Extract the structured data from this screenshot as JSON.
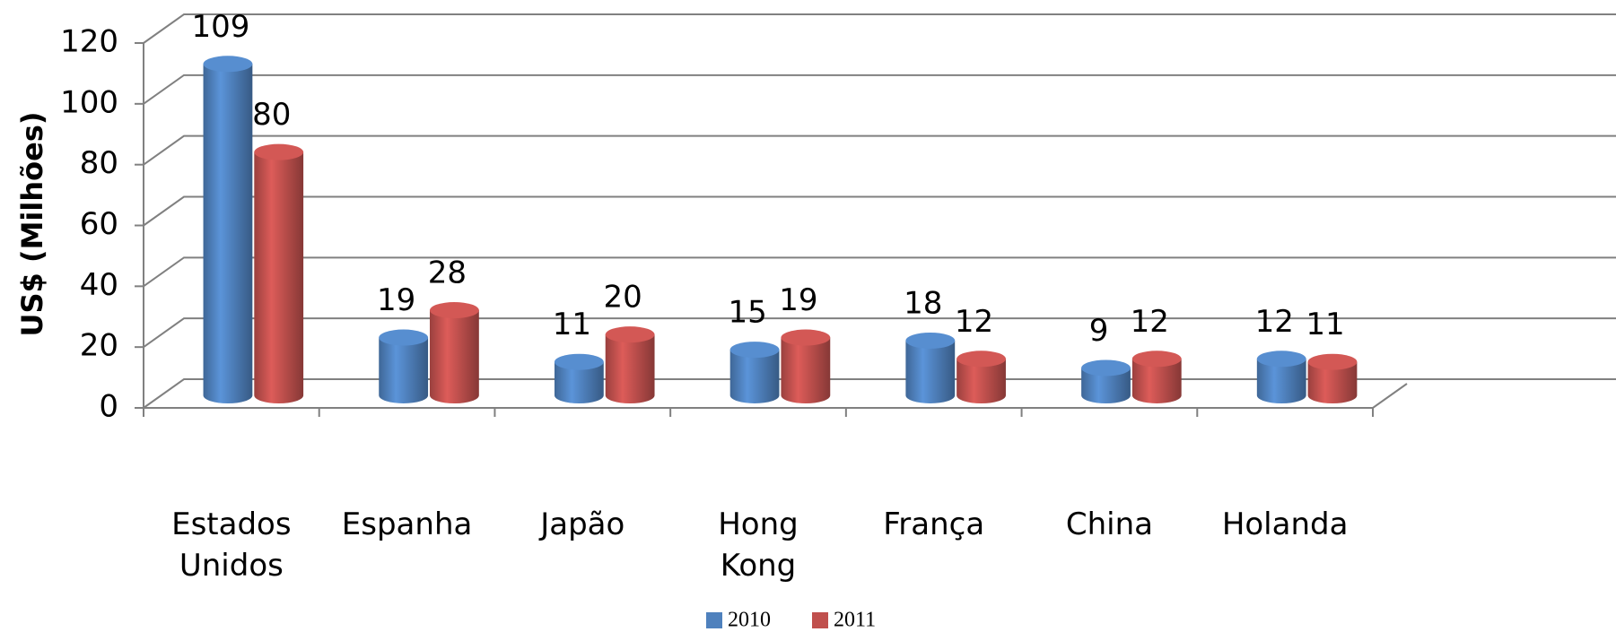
{
  "chart_data": {
    "type": "bar3d",
    "y_label": "US$ (Milhões)",
    "categories": [
      "Estados Unidos",
      "Espanha",
      "Japão",
      "Hong Kong",
      "França",
      "China",
      "Holanda"
    ],
    "series": [
      {
        "name": "2010",
        "color": "#4f81bd",
        "values": [
          109,
          19,
          11,
          15,
          18,
          9,
          12
        ]
      },
      {
        "name": "2011",
        "color": "#c0504d",
        "values": [
          80,
          28,
          20,
          19,
          12,
          12,
          11
        ]
      }
    ],
    "ylim": [
      0,
      120
    ],
    "yticks": [
      0,
      20,
      40,
      60,
      80,
      100,
      120
    ],
    "grid": true,
    "legend": "bottom"
  }
}
